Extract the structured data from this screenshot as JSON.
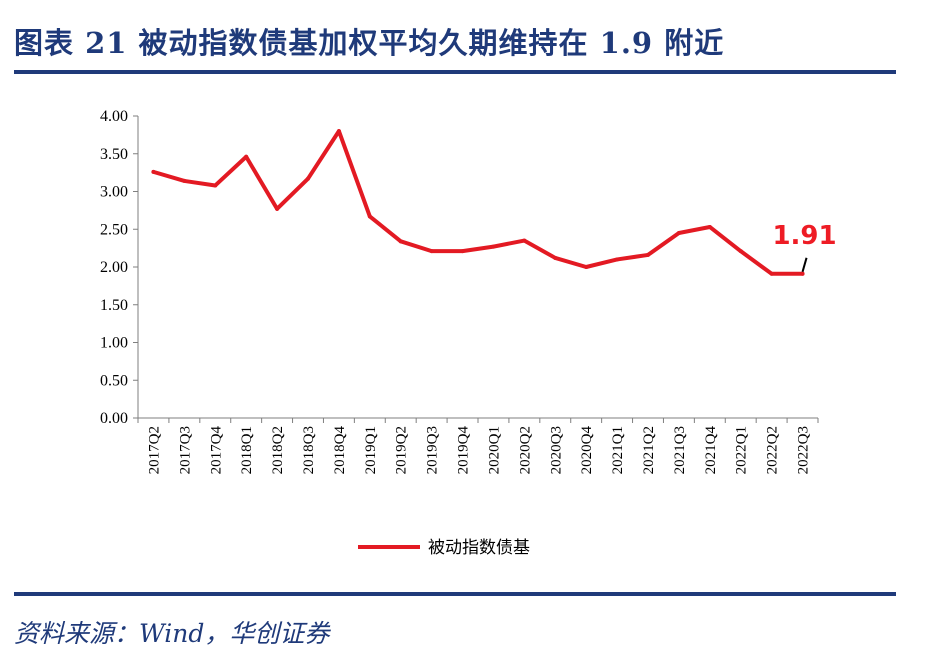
{
  "header": {
    "title": "图表 21  被动指数债基加权平均久期维持在 1.9 附近"
  },
  "footer": {
    "source": "资料来源：Wind，华创证券"
  },
  "colors": {
    "series": "#e31a23",
    "accent": "#1f3a7a",
    "annotation": "#ee1c25"
  },
  "chart_data": {
    "type": "line",
    "categories": [
      "2017Q2",
      "2017Q3",
      "2017Q4",
      "2018Q1",
      "2018Q2",
      "2018Q3",
      "2018Q4",
      "2019Q1",
      "2019Q2",
      "2019Q3",
      "2019Q4",
      "2020Q1",
      "2020Q2",
      "2020Q3",
      "2020Q4",
      "2021Q1",
      "2021Q2",
      "2021Q3",
      "2021Q4",
      "2022Q1",
      "2022Q2",
      "2022Q3"
    ],
    "series": [
      {
        "name": "被动指数债基",
        "values": [
          3.26,
          3.14,
          3.08,
          3.46,
          2.77,
          3.17,
          3.8,
          2.67,
          2.34,
          2.21,
          2.21,
          2.27,
          2.35,
          2.12,
          2.0,
          2.1,
          2.16,
          2.45,
          2.53,
          2.21,
          1.91,
          1.91
        ]
      }
    ],
    "yticks": [
      "0.00",
      "0.50",
      "1.00",
      "1.50",
      "2.00",
      "2.50",
      "3.00",
      "3.50",
      "4.00"
    ],
    "ylim": [
      0,
      4
    ],
    "annotation": {
      "text": "1.91",
      "category": "2022Q3",
      "value": 1.91
    },
    "legend": "bottom-center",
    "grid": false
  }
}
